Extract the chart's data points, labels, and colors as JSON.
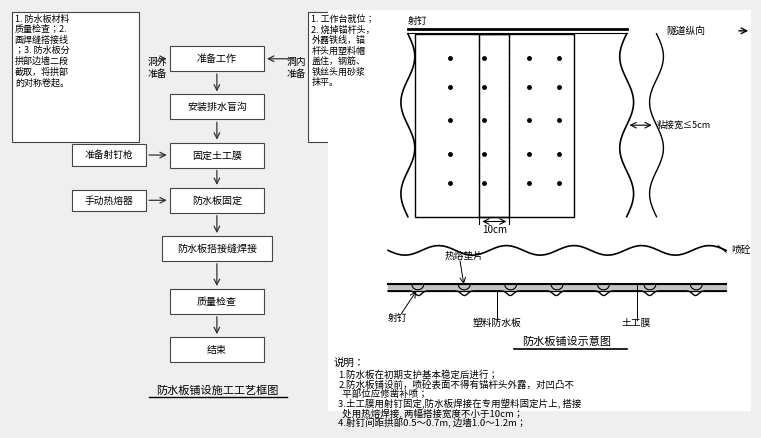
{
  "bg_color": "#f0f0f0",
  "title1": "防水板铺设施工工艺框图",
  "title2": "防水板铺设示意图",
  "flowchart_boxes": [
    "准备工作",
    "安装排水盲沟",
    "固定土工膜",
    "防水板固定",
    "防水板搭接缝焊接",
    "质量检查",
    "结束"
  ],
  "top_left_text": "1. 防水板材料\n质量检查；2.\n画焊缝搭接线\n；3. 防水板分\n拱部边墙二段\n截取，将拱部\n的对称卷起。",
  "top_right_text": "1. 工作台就位；\n2. 烧掉锚杆头，\n外露铁线，锚\n杆头用塑料帽\n盖住，钢筋、\n铁丝头用砂浆\n抹平。",
  "waiwai_label": "洞外\n准备",
  "neinei_label": "洞内\n准备",
  "side_left_boxes": [
    "准备射钉枪",
    "手动热熔器"
  ],
  "notes_title": "说明：",
  "notes": [
    "1.防水板在初期支护基本稳定后进行；",
    "2.防水板铺设前，喷砼表面不得有锚杆头外露，对凹凸不",
    "  平部位应修凿补喷；",
    "3.土工膜用射钉固定,防水板焊接在专用塑料固定片上, 搭接",
    "  处用热熔焊接, 两幅搭接宽度不小于10cm；",
    "4.射钉间距拱部0.5～0.7m, 边墙1.0～1.2m；"
  ],
  "label_shading": "射钉",
  "label_tunnel_dir": "隧道纵向",
  "label_stick_width": "粘接宽≤5cm",
  "label_10cm": "10cm",
  "label_hot_pad": "热熔垫片",
  "label_shotcrete": "喷砼",
  "label_nail_bot": "射钉",
  "label_waterboard": "塑料防水板",
  "label_geomem": "土工膜"
}
